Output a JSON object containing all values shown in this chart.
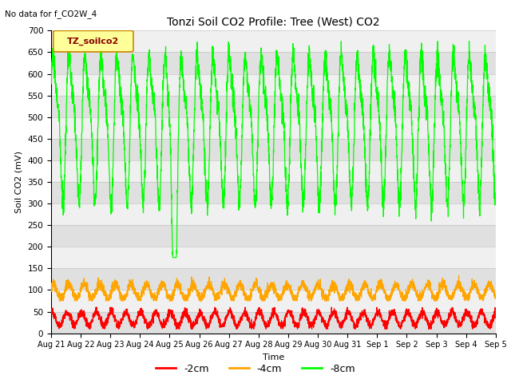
{
  "title": "Tonzi Soil CO2 Profile: Tree (West) CO2",
  "subtitle": "No data for f_CO2W_4",
  "ylabel": "Soil CO2 (mV)",
  "xlabel": "Time",
  "ylim": [
    0,
    700
  ],
  "yticks": [
    0,
    50,
    100,
    150,
    200,
    250,
    300,
    350,
    400,
    450,
    500,
    550,
    600,
    650,
    700
  ],
  "legend_label_2cm": "-2cm",
  "legend_label_4cm": "-4cm",
  "legend_label_8cm": "-8cm",
  "color_2cm": "#ff0000",
  "color_4cm": "#ffa500",
  "color_8cm": "#00ff00",
  "legend_box_facecolor": "#ffff99",
  "legend_box_edgecolor": "#cc8800",
  "legend_text": "TZ_soilco2",
  "legend_text_color": "#880000",
  "background_color": "#ffffff",
  "band_color_dark": "#e0e0e0",
  "band_color_light": "#f0f0f0",
  "xtick_labels": [
    "Aug 21",
    "Aug 22",
    "Aug 23",
    "Aug 24",
    "Aug 25",
    "Aug 26",
    "Aug 27",
    "Aug 28",
    "Aug 29",
    "Aug 30",
    "Aug 31",
    "Sep 1",
    "Sep 2",
    "Sep 3",
    "Sep 4",
    "Sep 5"
  ]
}
